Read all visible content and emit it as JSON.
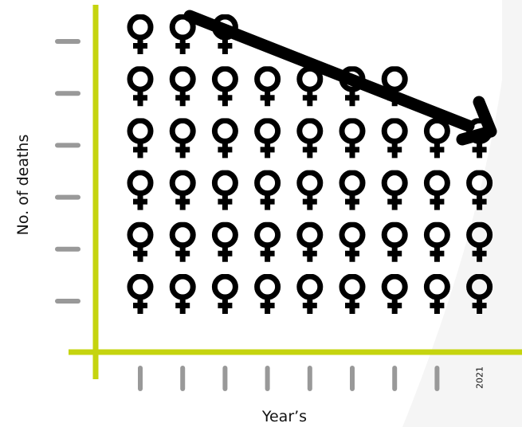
{
  "chart_data": {
    "type": "pictograph",
    "icon": "female-symbol-icon",
    "categories": [
      "",
      "",
      "",
      "",
      "",
      "",
      "",
      "",
      "2021"
    ],
    "values": [
      6,
      6,
      6,
      5,
      5,
      5,
      5,
      4,
      4
    ],
    "xlabel": "Year’s",
    "ylabel": "No. of deaths",
    "ylim": [
      0,
      6
    ],
    "trend": "decreasing",
    "colors": {
      "axis": "#c5d40f",
      "ticks": "#999999",
      "icons": "#000000",
      "arrow": "#000000",
      "backdrop": "#f5f5f5"
    }
  }
}
